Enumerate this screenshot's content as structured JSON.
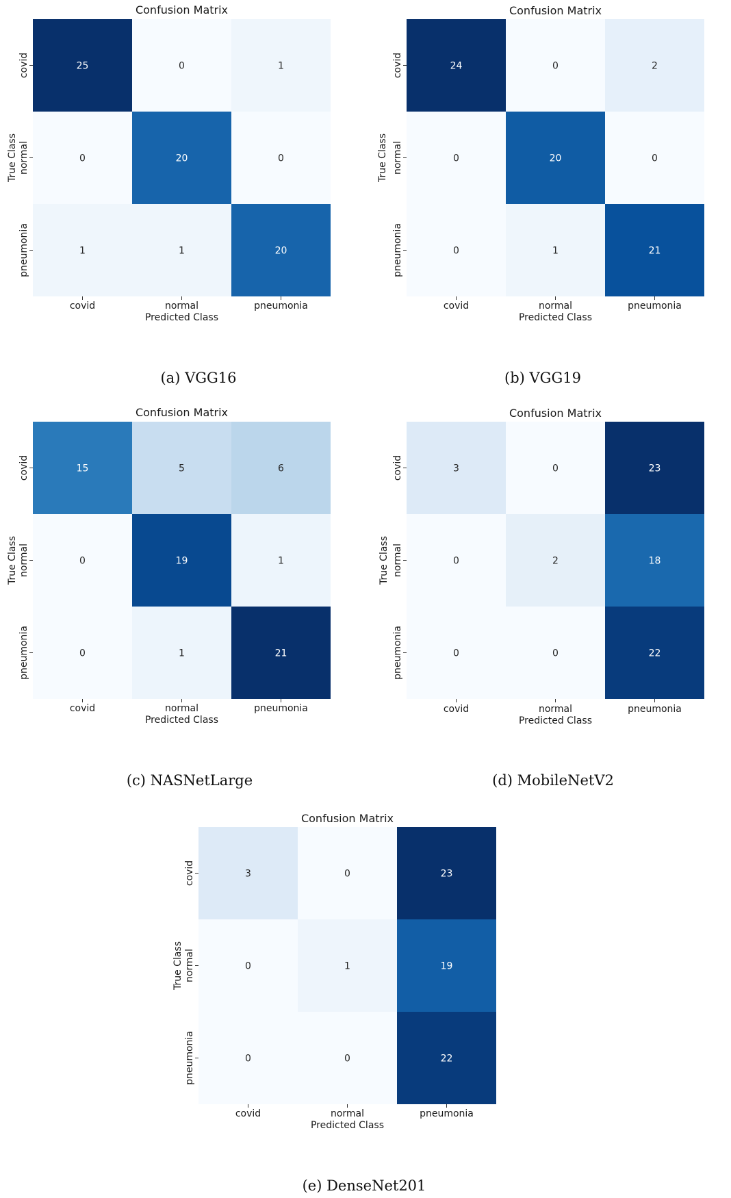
{
  "chart_data": [
    {
      "type": "heatmap",
      "title": "Confusion Matrix",
      "caption": "(a)  VGG16",
      "xlabel": "Predicted Class",
      "ylabel": "True Class",
      "x_categories": [
        "covid",
        "normal",
        "pneumonia"
      ],
      "y_categories": [
        "covid",
        "normal",
        "pneumonia"
      ],
      "values": [
        [
          25,
          0,
          1
        ],
        [
          0,
          20,
          0
        ],
        [
          1,
          1,
          20
        ]
      ],
      "colormap": "Blues",
      "color_range": [
        0,
        25
      ]
    },
    {
      "type": "heatmap",
      "title": "Confusion Matrix",
      "caption": "(b)  VGG19",
      "xlabel": "Predicted Class",
      "ylabel": "True Class",
      "x_categories": [
        "covid",
        "normal",
        "pneumonia"
      ],
      "y_categories": [
        "covid",
        "normal",
        "pneumonia"
      ],
      "values": [
        [
          24,
          0,
          2
        ],
        [
          0,
          20,
          0
        ],
        [
          0,
          1,
          21
        ]
      ],
      "colormap": "Blues",
      "color_range": [
        0,
        24
      ]
    },
    {
      "type": "heatmap",
      "title": "Confusion Matrix",
      "caption": "(c)  NASNetLarge",
      "xlabel": "Predicted Class",
      "ylabel": "True Class",
      "x_categories": [
        "covid",
        "normal",
        "pneumonia"
      ],
      "y_categories": [
        "covid",
        "normal",
        "pneumonia"
      ],
      "values": [
        [
          15,
          5,
          6
        ],
        [
          0,
          19,
          1
        ],
        [
          0,
          1,
          21
        ]
      ],
      "colormap": "Blues",
      "color_range": [
        0,
        21
      ]
    },
    {
      "type": "heatmap",
      "title": "Confusion Matrix",
      "caption": "(d)  MobileNetV2",
      "xlabel": "Predicted Class",
      "ylabel": "True Class",
      "x_categories": [
        "covid",
        "normal",
        "pneumonia"
      ],
      "y_categories": [
        "covid",
        "normal",
        "pneumonia"
      ],
      "values": [
        [
          3,
          0,
          23
        ],
        [
          0,
          2,
          18
        ],
        [
          0,
          0,
          22
        ]
      ],
      "colormap": "Blues",
      "color_range": [
        0,
        23
      ]
    },
    {
      "type": "heatmap",
      "title": "Confusion Matrix",
      "caption": "(e)  DenseNet201",
      "xlabel": "Predicted Class",
      "ylabel": "True Class",
      "x_categories": [
        "covid",
        "normal",
        "pneumonia"
      ],
      "y_categories": [
        "covid",
        "normal",
        "pneumonia"
      ],
      "values": [
        [
          3,
          0,
          23
        ],
        [
          0,
          1,
          19
        ],
        [
          0,
          0,
          22
        ]
      ],
      "colormap": "Blues",
      "color_range": [
        0,
        23
      ]
    }
  ]
}
